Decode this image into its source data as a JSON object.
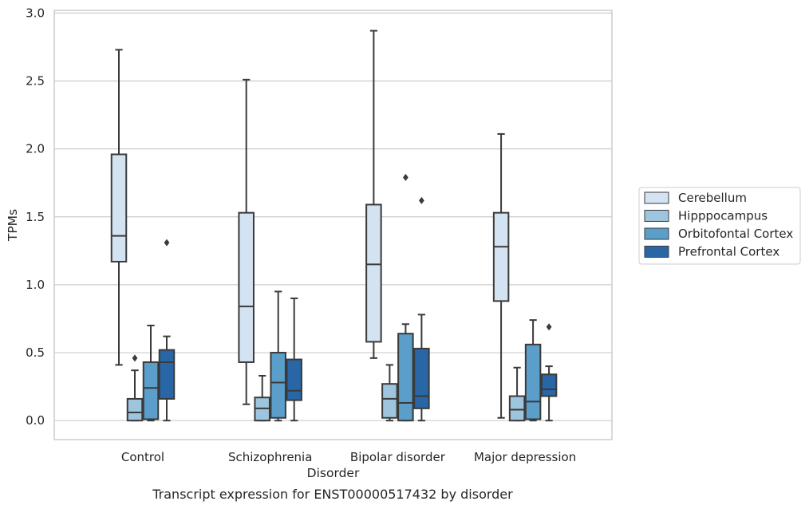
{
  "chart_data": {
    "type": "box",
    "title": "",
    "caption": "Transcript expression for ENST00000517432 by disorder",
    "xlabel": "Disorder",
    "ylabel": "TPMs",
    "ylim": [
      -0.14,
      3.02
    ],
    "yticks": [
      "0.0",
      "0.5",
      "1.0",
      "1.5",
      "2.0",
      "2.5",
      "3.0"
    ],
    "grid": "horizontal",
    "legend_position": "right",
    "categories": [
      "Control",
      "Schizophrenia",
      "Bipolar disorder",
      "Major depression"
    ],
    "series": [
      {
        "name": "Cerebellum",
        "color": "#d4e3f2",
        "boxes": [
          {
            "whisker_low": 0.41,
            "q1": 1.17,
            "median": 1.36,
            "q3": 1.96,
            "whisker_high": 2.73,
            "outliers": []
          },
          {
            "whisker_low": 0.12,
            "q1": 0.43,
            "median": 0.84,
            "q3": 1.53,
            "whisker_high": 2.51,
            "outliers": []
          },
          {
            "whisker_low": 0.46,
            "q1": 0.58,
            "median": 1.15,
            "q3": 1.59,
            "whisker_high": 2.87,
            "outliers": []
          },
          {
            "whisker_low": 0.02,
            "q1": 0.88,
            "median": 1.28,
            "q3": 1.53,
            "whisker_high": 2.11,
            "outliers": []
          }
        ]
      },
      {
        "name": "Hipppocampus",
        "color": "#9dc5dd",
        "boxes": [
          {
            "whisker_low": 0.0,
            "q1": 0.0,
            "median": 0.06,
            "q3": 0.16,
            "whisker_high": 0.37,
            "outliers": [
              0.46
            ]
          },
          {
            "whisker_low": 0.0,
            "q1": 0.0,
            "median": 0.09,
            "q3": 0.17,
            "whisker_high": 0.33,
            "outliers": []
          },
          {
            "whisker_low": 0.0,
            "q1": 0.02,
            "median": 0.16,
            "q3": 0.27,
            "whisker_high": 0.41,
            "outliers": []
          },
          {
            "whisker_low": 0.0,
            "q1": 0.0,
            "median": 0.08,
            "q3": 0.18,
            "whisker_high": 0.39,
            "outliers": []
          }
        ]
      },
      {
        "name": "Orbitofontal Cortex",
        "color": "#5a9ec9",
        "boxes": [
          {
            "whisker_low": 0.0,
            "q1": 0.01,
            "median": 0.24,
            "q3": 0.43,
            "whisker_high": 0.7,
            "outliers": []
          },
          {
            "whisker_low": 0.0,
            "q1": 0.02,
            "median": 0.28,
            "q3": 0.5,
            "whisker_high": 0.95,
            "outliers": []
          },
          {
            "whisker_low": 0.0,
            "q1": 0.0,
            "median": 0.13,
            "q3": 0.64,
            "whisker_high": 0.71,
            "outliers": [
              1.79
            ]
          },
          {
            "whisker_low": 0.0,
            "q1": 0.01,
            "median": 0.14,
            "q3": 0.56,
            "whisker_high": 0.74,
            "outliers": []
          }
        ]
      },
      {
        "name": "Prefrontal Cortex",
        "color": "#2966a6",
        "boxes": [
          {
            "whisker_low": 0.0,
            "q1": 0.16,
            "median": 0.43,
            "q3": 0.52,
            "whisker_high": 0.62,
            "outliers": [
              1.31
            ]
          },
          {
            "whisker_low": 0.0,
            "q1": 0.15,
            "median": 0.22,
            "q3": 0.45,
            "whisker_high": 0.9,
            "outliers": []
          },
          {
            "whisker_low": 0.0,
            "q1": 0.09,
            "median": 0.18,
            "q3": 0.53,
            "whisker_high": 0.78,
            "outliers": [
              1.62
            ]
          },
          {
            "whisker_low": 0.0,
            "q1": 0.18,
            "median": 0.23,
            "q3": 0.34,
            "whisker_high": 0.4,
            "outliers": [
              0.69
            ]
          }
        ]
      }
    ]
  }
}
